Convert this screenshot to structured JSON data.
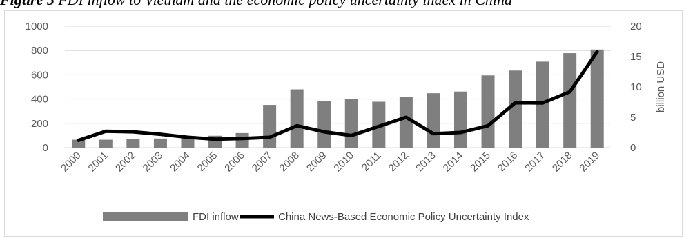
{
  "figure": {
    "title_bold": "Figure 5",
    "title_rest": " FDI inflow to Vietnam and the economic policy uncertainty index in China"
  },
  "colors": {
    "bar": "#7f7f7f",
    "line": "#000000",
    "grid": "#d9d9d9",
    "text": "#595959"
  },
  "chart_data": {
    "type": "bar",
    "categories": [
      "2000",
      "2001",
      "2002",
      "2003",
      "2004",
      "2005",
      "2006",
      "2007",
      "2008",
      "2009",
      "2010",
      "2011",
      "2012",
      "2013",
      "2014",
      "2015",
      "2016",
      "2017",
      "2018",
      "2019"
    ],
    "series": [
      {
        "name": "FDI inflow",
        "type": "bar",
        "axis": "left",
        "values": [
          65,
          65,
          70,
          75,
          80,
          98,
          120,
          352,
          480,
          382,
          402,
          378,
          420,
          448,
          462,
          595,
          635,
          708,
          778,
          808
        ]
      },
      {
        "name": "China News-Based Economic Policy Uncertainty Index",
        "type": "line",
        "axis": "right",
        "values": [
          1.2,
          2.7,
          2.6,
          2.2,
          1.7,
          1.4,
          1.5,
          1.7,
          3.6,
          2.6,
          2.0,
          3.5,
          5.0,
          2.3,
          2.5,
          3.6,
          7.4,
          7.35,
          9.2,
          15.8
        ]
      }
    ],
    "left_axis": {
      "min": 0,
      "max": 1000,
      "ticks": [
        0,
        200,
        400,
        600,
        800,
        1000
      ]
    },
    "right_axis": {
      "min": 0,
      "max": 20,
      "ticks": [
        0,
        5,
        10,
        15,
        20
      ],
      "label": "billion USD"
    },
    "grid": true,
    "legend_position": "bottom"
  }
}
